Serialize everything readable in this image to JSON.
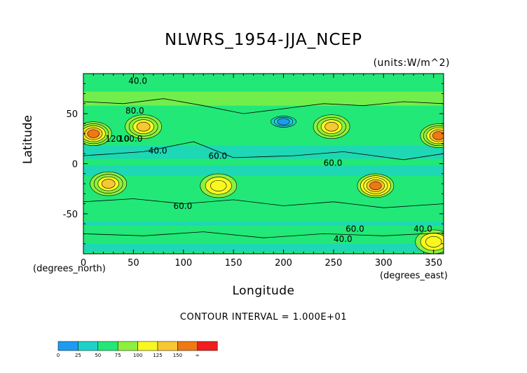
{
  "chart_data": {
    "type": "heatmap",
    "title": "NLWRS_1954-JJA_NCEP",
    "units": "(units:W/m^2)",
    "xlabel": "Longitude",
    "ylabel": "Latitude",
    "x_unit_note": "(degrees_east)",
    "y_unit_note": "(degrees_north)",
    "xlim": [
      0,
      360
    ],
    "ylim": [
      -90,
      90
    ],
    "x_ticks": [
      0,
      50,
      100,
      150,
      200,
      250,
      300,
      350
    ],
    "y_ticks": [
      -50,
      0,
      50
    ],
    "contour_interval_text": "CONTOUR INTERVAL = 1.000E+01",
    "contour_labels": [
      "40.0",
      "80.0",
      "120.0",
      "100.0",
      "40.0",
      "60.0",
      "60.0",
      "60.0",
      "60.0",
      "40.0",
      "40.0"
    ],
    "colorbar": {
      "levels": [
        "0",
        "25",
        "50",
        "75",
        "100",
        "125",
        "150",
        "∞"
      ],
      "colors": [
        "#1e9bf0",
        "#1ed2c8",
        "#22e878",
        "#8cf03c",
        "#f8f820",
        "#f8c832",
        "#f07814",
        "#f01e1e"
      ]
    },
    "features": [
      {
        "lon": 10,
        "lat": 30,
        "value": 150
      },
      {
        "lon": 355,
        "lat": 28,
        "value": 150
      },
      {
        "lon": 60,
        "lat": 37,
        "value": 135
      },
      {
        "lon": 248,
        "lat": 37,
        "value": 130
      },
      {
        "lon": 25,
        "lat": -20,
        "value": 125
      },
      {
        "lon": 135,
        "lat": -22,
        "value": 120
      },
      {
        "lon": 292,
        "lat": -22,
        "value": 160
      },
      {
        "lon": 200,
        "lat": 42,
        "value": 20
      },
      {
        "lon": 350,
        "lat": -78,
        "value": 120
      }
    ]
  }
}
